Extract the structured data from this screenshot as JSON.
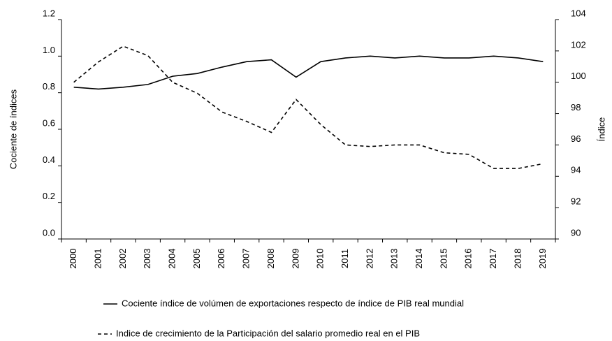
{
  "chart_data": {
    "type": "line",
    "y_label": "Cociente de índices",
    "y2_label": "Índice",
    "categories": [
      "2000",
      "2001",
      "2002",
      "2003",
      "2004",
      "2005",
      "2006",
      "2007",
      "2008",
      "2009",
      "2010",
      "2011",
      "2012",
      "2013",
      "2014",
      "2015",
      "2016",
      "2017",
      "2018",
      "2019"
    ],
    "series": [
      {
        "name": "Cociente índice de volúmen de exportaciones respecto de índice de PIB real mundial",
        "color": "#000000",
        "dash": "solid",
        "values": [
          0.83,
          0.82,
          0.83,
          0.845,
          0.89,
          0.905,
          0.94,
          0.97,
          0.98,
          0.885,
          0.97,
          0.99,
          1.0,
          0.99,
          1.0,
          0.99,
          0.99,
          1.0,
          0.99,
          0.97
        ]
      },
      {
        "name": "Indice de crecimiento de la Participación del salario promedio real en el PIB",
        "color": "#000000",
        "dash": "dashed",
        "axis": "y2",
        "values": [
          100,
          101.3,
          102.3,
          101.7,
          100,
          99.3,
          98.1,
          97.5,
          96.8,
          98.9,
          97.3,
          96.0,
          95.9,
          96.0,
          96.0,
          95.5,
          95.4,
          94.5,
          94.5,
          94.8
        ]
      }
    ],
    "ylim": [
      0,
      1.2
    ],
    "yticks": [
      {
        "value": 0,
        "label": "0.0"
      },
      0.2,
      0.4,
      0.6,
      0.8,
      {
        "value": 1,
        "label": "1.0"
      },
      1.2
    ],
    "y2lim": [
      90,
      104
    ],
    "y2ticks": [
      90,
      92,
      94,
      96,
      98,
      100,
      102,
      104
    ],
    "grid": false
  }
}
